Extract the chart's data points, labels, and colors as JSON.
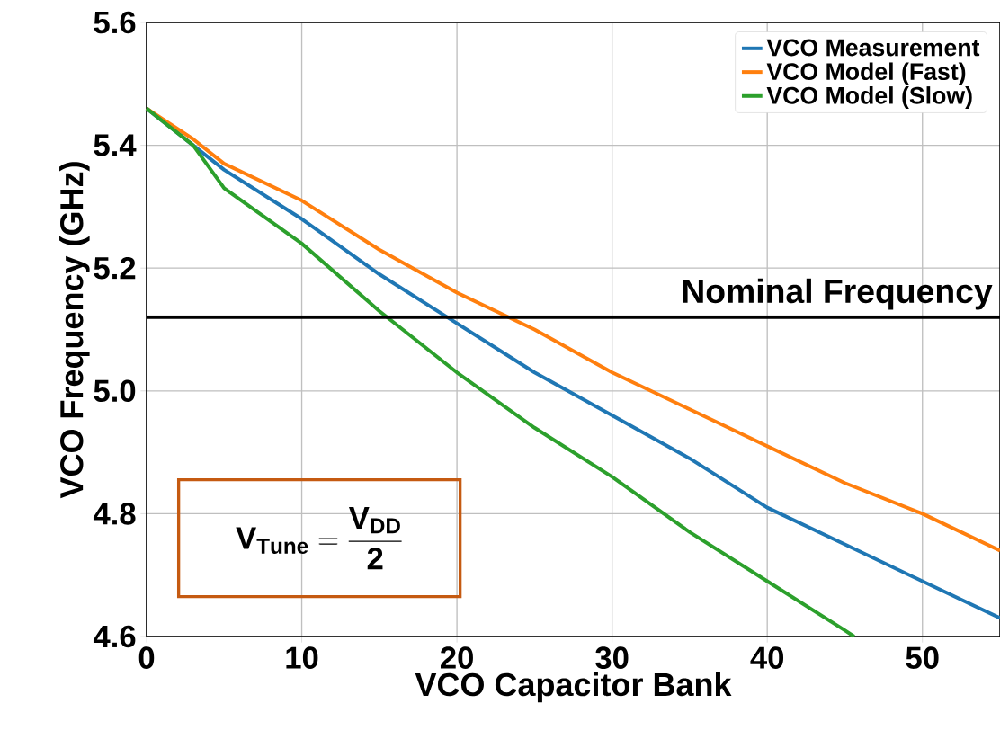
{
  "chart_data": {
    "type": "line",
    "xlabel": "VCO Capacitor Bank",
    "ylabel": "VCO Frequency (GHz)",
    "xlim": [
      0,
      55
    ],
    "ylim": [
      4.6,
      5.6
    ],
    "xticks": [
      0,
      10,
      20,
      30,
      40,
      50
    ],
    "yticks": [
      4.6,
      4.8,
      {
        "value": 5,
        "label": "5.0"
      },
      5.2,
      5.4,
      5.6
    ],
    "grid": true,
    "legend": "top right",
    "series": [
      {
        "name": "VCO Measurement",
        "color": "#1f77b4",
        "x": [
          0,
          3,
          5,
          10,
          15,
          20,
          25,
          30,
          35,
          40,
          45,
          50,
          55
        ],
        "values": [
          5.46,
          5.4,
          5.36,
          5.28,
          5.19,
          5.11,
          5.03,
          4.96,
          4.89,
          4.81,
          4.75,
          4.69,
          4.63
        ]
      },
      {
        "name": "VCO Model (Fast)",
        "color": "#ff7f0e",
        "x": [
          0,
          3,
          5,
          10,
          15,
          20,
          25,
          30,
          35,
          40,
          45,
          50,
          55
        ],
        "values": [
          5.46,
          5.41,
          5.37,
          5.31,
          5.23,
          5.16,
          5.1,
          5.03,
          4.97,
          4.91,
          4.85,
          4.8,
          4.74
        ]
      },
      {
        "name": "VCO Model (Slow)",
        "color": "#2ca02c",
        "x": [
          0,
          3,
          5,
          10,
          15,
          20,
          25,
          30,
          35,
          40,
          45,
          45.6
        ],
        "values": [
          5.46,
          5.4,
          5.33,
          5.24,
          5.13,
          5.03,
          4.94,
          4.86,
          4.77,
          4.69,
          4.61,
          4.6
        ]
      }
    ],
    "ref_lines": [
      {
        "axis": "y",
        "value": 5.12,
        "label": "Nominal Frequency",
        "color": "#000000"
      }
    ],
    "annotations": [
      "\\mathbf{V_{Tune}} = \\frac{\\mathbf{V_{DD}}}{\\mathbf{2}}"
    ]
  }
}
